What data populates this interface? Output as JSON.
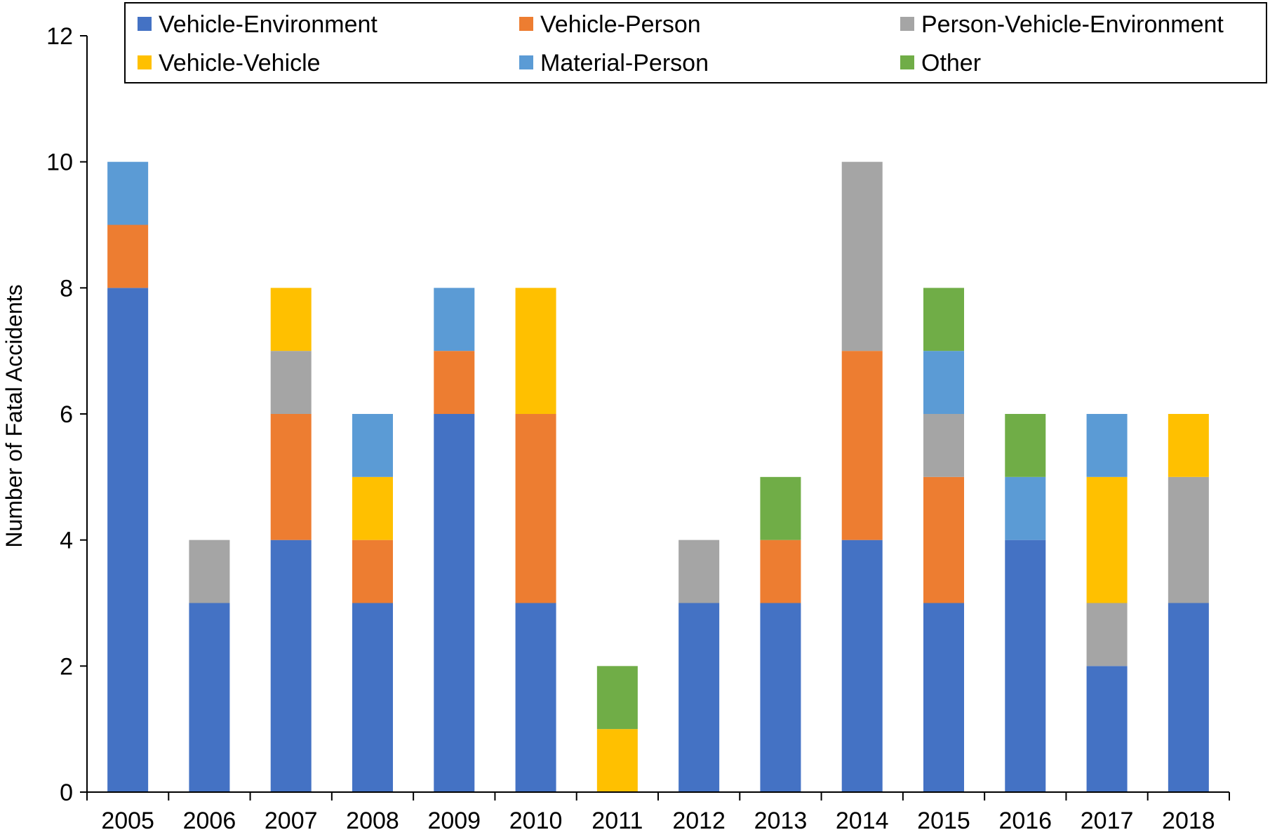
{
  "chart_data": {
    "type": "bar",
    "stacked": true,
    "title": "",
    "xlabel": "",
    "ylabel": "Number of Fatal Accidents",
    "ylim": [
      0,
      12
    ],
    "ytick_step": 2,
    "yticks": [
      "0",
      "2",
      "4",
      "6",
      "8",
      "10",
      "12"
    ],
    "grid": false,
    "legend_position": "top",
    "categories": [
      "2005",
      "2006",
      "2007",
      "2008",
      "2009",
      "2010",
      "2011",
      "2012",
      "2013",
      "2014",
      "2015",
      "2016",
      "2017",
      "2018"
    ],
    "series": [
      {
        "name": "Vehicle-Environment",
        "color": "#4472C4",
        "values": [
          8,
          3,
          4,
          3,
          6,
          3,
          0,
          3,
          3,
          4,
          3,
          4,
          2,
          3
        ]
      },
      {
        "name": "Vehicle-Person",
        "color": "#ED7D31",
        "values": [
          1,
          0,
          2,
          1,
          1,
          3,
          0,
          0,
          1,
          3,
          2,
          0,
          0,
          0
        ]
      },
      {
        "name": "Person-Vehicle-Environment",
        "color": "#A5A5A5",
        "values": [
          0,
          1,
          1,
          0,
          0,
          0,
          0,
          1,
          0,
          3,
          1,
          0,
          1,
          2
        ]
      },
      {
        "name": "Vehicle-Vehicle",
        "color": "#FFC000",
        "values": [
          0,
          0,
          1,
          1,
          0,
          2,
          1,
          0,
          0,
          0,
          0,
          0,
          2,
          1
        ]
      },
      {
        "name": "Material-Person",
        "color": "#5B9BD5",
        "values": [
          1,
          0,
          0,
          1,
          1,
          0,
          0,
          0,
          0,
          0,
          1,
          1,
          1,
          0
        ]
      },
      {
        "name": "Other",
        "color": "#70AD47",
        "values": [
          0,
          0,
          0,
          0,
          0,
          0,
          1,
          0,
          1,
          0,
          1,
          1,
          0,
          0
        ]
      }
    ]
  }
}
